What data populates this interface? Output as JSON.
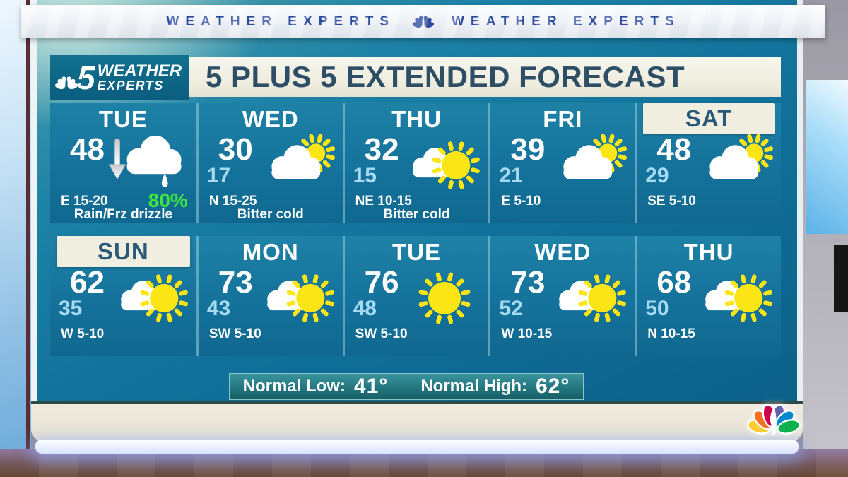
{
  "banner": {
    "text_left": "WEATHER EXPERTS",
    "text_right": "WEATHER EXPERTS",
    "separator_icon": "nbc-peacock-icon"
  },
  "brand": {
    "station_number": "5",
    "line1": "WEATHER",
    "line2": "EXPERTS",
    "logo_icon": "nbc-peacock-icon",
    "star_icon": "star-icon"
  },
  "header": {
    "title": "5 PLUS 5 EXTENDED FORECAST"
  },
  "forecast": {
    "rows": [
      {
        "days": [
          {
            "label": "TUE",
            "high": "48",
            "trend": "down",
            "icon": "cloud-drizzle",
            "precip": "80%",
            "wind": "E 15-20",
            "condition": "Rain/Frz drizzle",
            "highlighted": false
          },
          {
            "label": "WED",
            "high": "30",
            "low": "17",
            "icon": "partly-cloudy",
            "wind": "N 15-25",
            "condition": "Bitter cold",
            "highlighted": false
          },
          {
            "label": "THU",
            "high": "32",
            "low": "15",
            "icon": "mostly-sunny",
            "wind": "NE 10-15",
            "condition": "Bitter cold",
            "highlighted": false
          },
          {
            "label": "FRI",
            "high": "39",
            "low": "21",
            "icon": "partly-cloudy",
            "wind": "E 5-10",
            "highlighted": false
          },
          {
            "label": "SAT",
            "high": "48",
            "low": "29",
            "icon": "partly-cloudy",
            "wind": "SE 5-10",
            "highlighted": true
          }
        ]
      },
      {
        "days": [
          {
            "label": "SUN",
            "high": "62",
            "low": "35",
            "icon": "mostly-sunny",
            "wind": "W 5-10",
            "highlighted": true
          },
          {
            "label": "MON",
            "high": "73",
            "low": "43",
            "icon": "mostly-sunny",
            "wind": "SW 5-10",
            "highlighted": false
          },
          {
            "label": "TUE",
            "high": "76",
            "low": "48",
            "icon": "sunny",
            "wind": "SW 5-10",
            "highlighted": false
          },
          {
            "label": "WED",
            "high": "73",
            "low": "52",
            "icon": "mostly-sunny",
            "wind": "W 10-15",
            "highlighted": false
          },
          {
            "label": "THU",
            "high": "68",
            "low": "50",
            "icon": "mostly-sunny",
            "wind": "N 10-15",
            "highlighted": false
          }
        ]
      }
    ],
    "normals": {
      "low_label": "Normal Low:",
      "low_value": "41°",
      "high_label": "Normal High:",
      "high_value": "62°"
    }
  },
  "colors": {
    "cell_teal": "#14719a",
    "panel_dark_teal": "#0c6189",
    "cream": "#efeee1",
    "title_text": "#2e4e66",
    "low_temp": "#a6daf0",
    "precip_green": "#3fe541",
    "banner_text": "#1c3e9a",
    "normal_bar": "#24767f",
    "peacock": [
      "#fccc30",
      "#f37021",
      "#cc004c",
      "#6460aa",
      "#0089d0",
      "#0db14b"
    ]
  }
}
